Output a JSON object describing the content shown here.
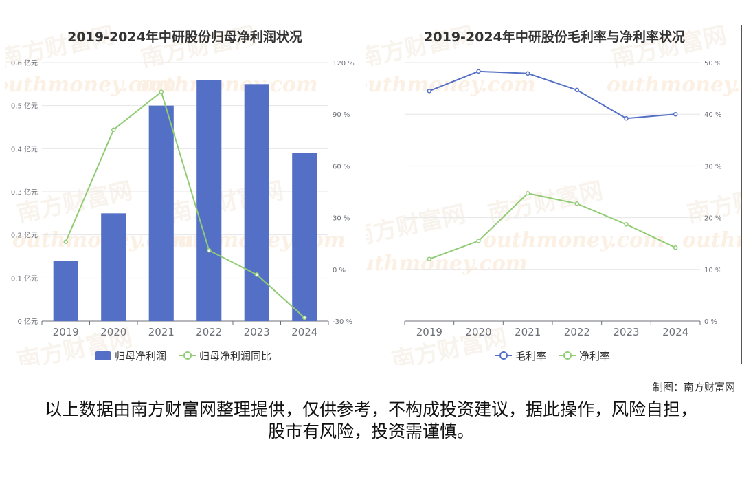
{
  "watermark": {
    "cn": "南方财富网",
    "en": "outhmoney.com"
  },
  "credit": "制图：南方财富网",
  "disclaimer": "以上数据由南方财富网整理提供，仅供参考，不构成投资建议，据此操作，风险自担，股市有风险，投资需谨慎。",
  "colors": {
    "blue": "#5470c6",
    "green": "#91cc75",
    "grid": "#e6e6e6",
    "axis": "#6e7079"
  },
  "chart_data": [
    {
      "type": "bar",
      "title": "2019-2024年中研股份归母净利润状况",
      "categories": [
        "2019",
        "2020",
        "2021",
        "2022",
        "2023",
        "2024"
      ],
      "series": [
        {
          "name": "归母净利润",
          "type": "bar",
          "axis": "left",
          "values": [
            0.14,
            0.25,
            0.5,
            0.56,
            0.55,
            0.39
          ]
        },
        {
          "name": "归母净利润同比",
          "type": "line",
          "axis": "right",
          "values": [
            16,
            81,
            103,
            11,
            -3,
            -28
          ]
        }
      ],
      "y_left": {
        "ticks": [
          "0 亿元",
          "0.1 亿元",
          "0.2 亿元",
          "0.3 亿元",
          "0.4 亿元",
          "0.5 亿元",
          "0.6 亿元"
        ],
        "range": [
          0,
          0.6
        ]
      },
      "y_right": {
        "ticks": [
          "-30 %",
          "0 %",
          "30 %",
          "60 %",
          "90 %",
          "120 %"
        ],
        "range": [
          -30,
          120
        ]
      },
      "legend": "bottom-center",
      "grid": true
    },
    {
      "type": "line",
      "title": "2019-2024年中研股份毛利率与净利率状况",
      "categories": [
        "2019",
        "2020",
        "2021",
        "2022",
        "2023",
        "2024"
      ],
      "series": [
        {
          "name": "毛利率",
          "values": [
            44.5,
            48.3,
            47.9,
            44.7,
            39.2,
            40.0
          ]
        },
        {
          "name": "净利率",
          "values": [
            12.0,
            15.5,
            24.7,
            22.7,
            18.7,
            14.2
          ]
        }
      ],
      "y_right": {
        "ticks": [
          "0 %",
          "10 %",
          "20 %",
          "30 %",
          "40 %",
          "50 %"
        ],
        "range": [
          0,
          50
        ]
      },
      "legend": "bottom-center",
      "grid": true
    }
  ]
}
